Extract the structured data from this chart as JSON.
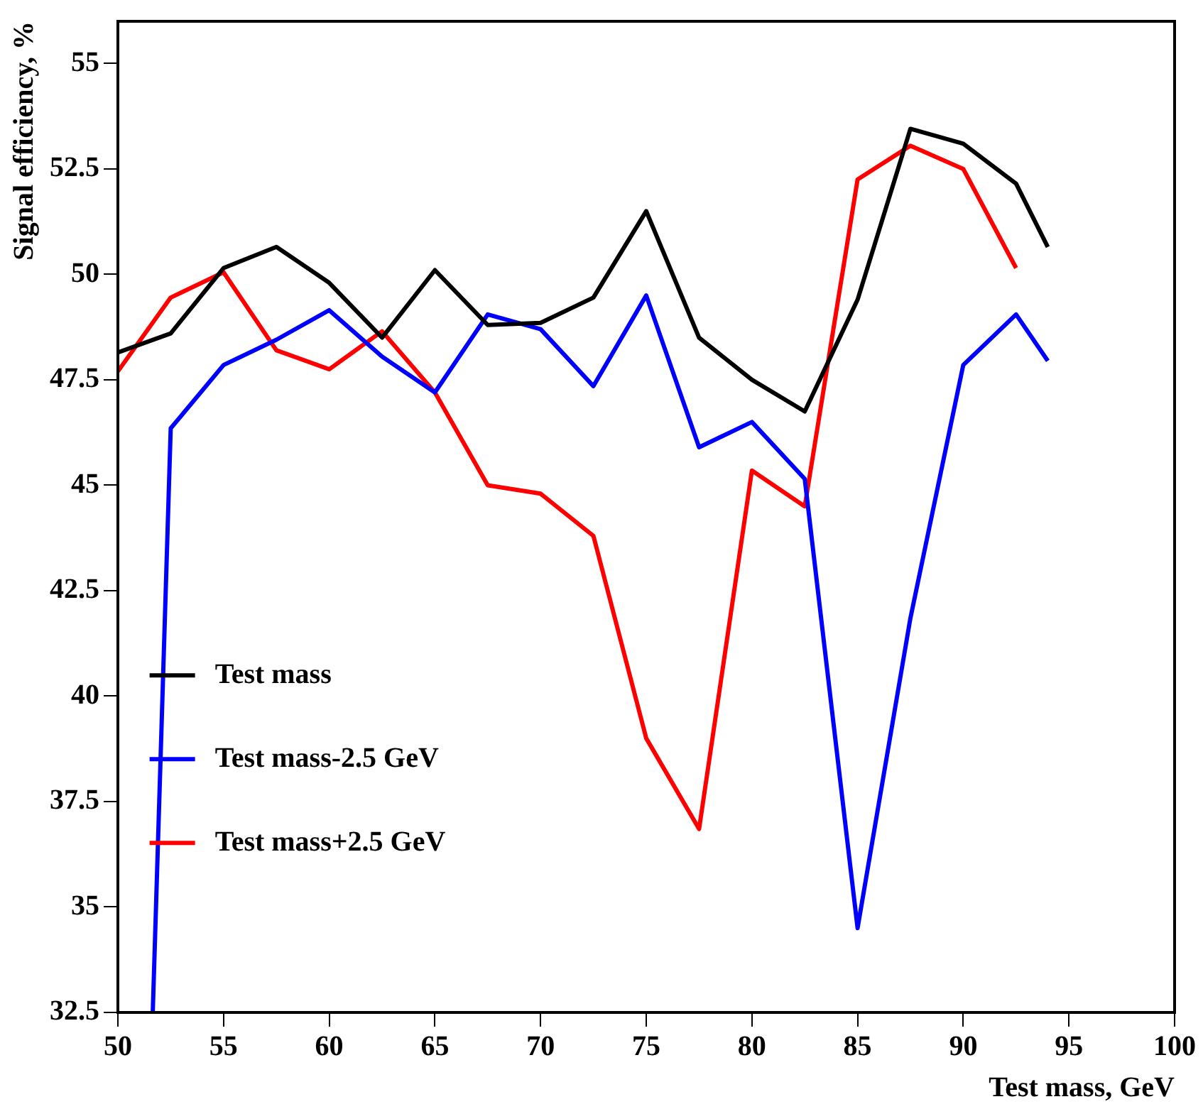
{
  "chart_data": {
    "type": "line",
    "xlabel": "Test mass, GeV",
    "ylabel": "Signal efficiency, %",
    "x": [
      50,
      52.5,
      55,
      57.5,
      60,
      62.5,
      65,
      67.5,
      70,
      72.5,
      75,
      77.5,
      80,
      82.5,
      85,
      87.5,
      90,
      92.5,
      94
    ],
    "series": [
      {
        "name": "Test mass",
        "color": "#000000",
        "values": [
          48.15,
          48.6,
          50.15,
          50.65,
          49.8,
          48.5,
          50.1,
          48.8,
          48.85,
          49.45,
          51.5,
          48.5,
          47.5,
          46.75,
          49.4,
          53.45,
          53.1,
          52.15,
          50.65
        ]
      },
      {
        "name": "Test mass-2.5 GeV",
        "color": "#0000ff",
        "x": [
          51.65,
          52.5,
          55,
          57.5,
          60,
          62.5,
          65,
          67.5,
          70,
          72.5,
          75,
          77.5,
          80,
          82.5,
          85,
          87.5,
          90,
          92.5,
          94
        ],
        "values": [
          32.5,
          46.35,
          47.85,
          48.45,
          49.15,
          48.05,
          47.2,
          49.05,
          48.7,
          47.35,
          49.5,
          45.9,
          46.5,
          45.15,
          34.5,
          41.85,
          47.85,
          49.05,
          47.95
        ]
      },
      {
        "name": "Test mass+2.5 GeV",
        "color": "#ff0000",
        "values": [
          47.7,
          49.45,
          50.05,
          48.2,
          47.75,
          48.65,
          47.2,
          45,
          44.8,
          43.8,
          39,
          36.85,
          45.35,
          44.5,
          52.25,
          53.05,
          52.5,
          50.15,
          null
        ]
      }
    ],
    "xlim": [
      50,
      100
    ],
    "xticks": [
      50,
      55,
      60,
      65,
      70,
      75,
      80,
      85,
      90,
      95,
      100
    ],
    "ylim": [
      32.5,
      56
    ],
    "yticks": [
      32.5,
      35,
      37.5,
      40,
      42.5,
      45,
      47.5,
      50,
      52.5,
      55
    ],
    "grid": false,
    "legend": "left",
    "marker": "none",
    "line_style": "solid"
  }
}
